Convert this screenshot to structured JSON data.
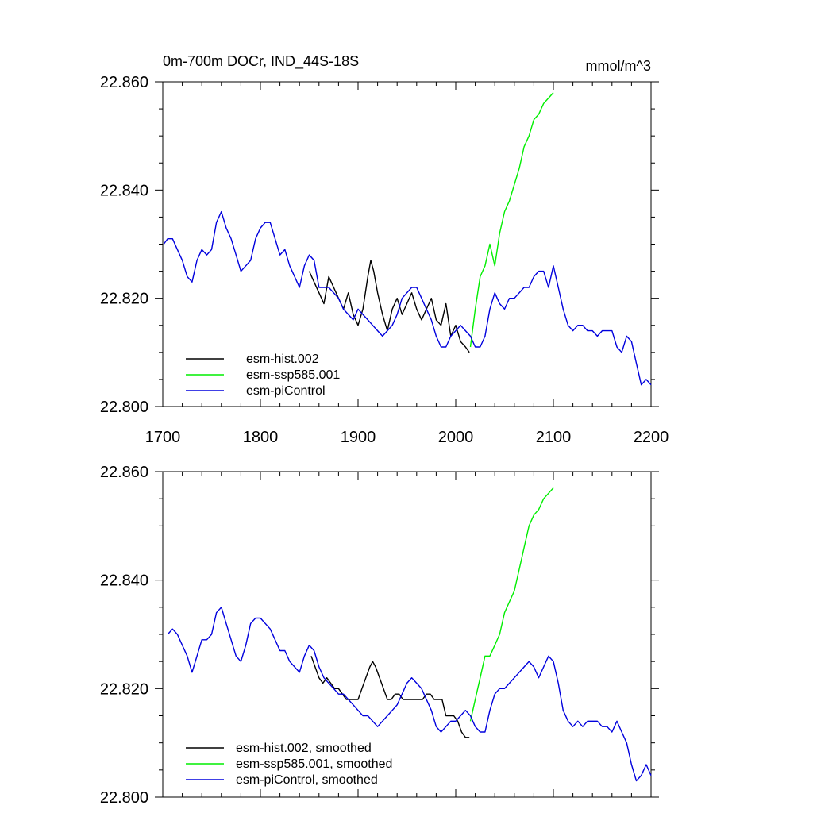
{
  "colors": {
    "hist": "#000000",
    "ssp": "#00ee00",
    "pictrl": "#0000dd",
    "axis": "#000000"
  },
  "chart_data": [
    {
      "type": "line",
      "title": "0m-700m DOCr, IND_44S-18S",
      "units": "mmol/m^3",
      "xlim": [
        1700,
        2200
      ],
      "ylim": [
        22.8,
        22.86
      ],
      "xticks": [
        "1700",
        "1800",
        "1900",
        "2000",
        "2100",
        "2200"
      ],
      "yticks": [
        "22.800",
        "22.820",
        "22.840",
        "22.860"
      ],
      "series": [
        {
          "name": "esm-hist.002",
          "color": "#000000",
          "x": [
            1850,
            1855,
            1860,
            1865,
            1870,
            1875,
            1880,
            1885,
            1890,
            1895,
            1900,
            1905,
            1910,
            1913,
            1916,
            1920,
            1925,
            1930,
            1935,
            1940,
            1945,
            1950,
            1955,
            1960,
            1965,
            1970,
            1975,
            1980,
            1985,
            1990,
            1995,
            2000,
            2005,
            2010,
            2014
          ],
          "y": [
            22.825,
            22.823,
            22.821,
            22.819,
            22.824,
            22.822,
            22.82,
            22.818,
            22.821,
            22.817,
            22.815,
            22.818,
            22.824,
            22.827,
            22.825,
            22.821,
            22.817,
            22.814,
            22.818,
            22.82,
            22.817,
            22.819,
            22.821,
            22.818,
            22.816,
            22.818,
            22.82,
            22.816,
            22.815,
            22.819,
            22.813,
            22.815,
            22.812,
            22.811,
            22.81
          ]
        },
        {
          "name": "esm-ssp585.001",
          "color": "#00ee00",
          "x": [
            2015,
            2020,
            2025,
            2030,
            2035,
            2040,
            2045,
            2050,
            2055,
            2060,
            2065,
            2070,
            2075,
            2080,
            2085,
            2090,
            2095,
            2100
          ],
          "y": [
            22.811,
            22.818,
            22.824,
            22.826,
            22.83,
            22.826,
            22.832,
            22.836,
            22.838,
            22.841,
            22.844,
            22.848,
            22.85,
            22.853,
            22.854,
            22.856,
            22.857,
            22.858
          ]
        },
        {
          "name": "esm-piControl",
          "color": "#0000dd",
          "x": [
            1701,
            1705,
            1710,
            1715,
            1720,
            1725,
            1730,
            1735,
            1740,
            1745,
            1750,
            1755,
            1760,
            1765,
            1770,
            1775,
            1780,
            1785,
            1790,
            1795,
            1800,
            1805,
            1810,
            1815,
            1820,
            1825,
            1830,
            1835,
            1840,
            1845,
            1850,
            1855,
            1860,
            1865,
            1870,
            1875,
            1880,
            1885,
            1890,
            1895,
            1900,
            1905,
            1910,
            1915,
            1920,
            1925,
            1930,
            1935,
            1940,
            1945,
            1950,
            1955,
            1960,
            1965,
            1970,
            1975,
            1980,
            1985,
            1990,
            1995,
            2000,
            2005,
            2010,
            2015,
            2020,
            2025,
            2030,
            2035,
            2040,
            2045,
            2050,
            2055,
            2060,
            2065,
            2070,
            2075,
            2080,
            2085,
            2090,
            2095,
            2100,
            2105,
            2110,
            2115,
            2120,
            2125,
            2130,
            2135,
            2140,
            2145,
            2150,
            2155,
            2160,
            2165,
            2170,
            2175,
            2180,
            2185,
            2190,
            2195,
            2200
          ],
          "y": [
            22.83,
            22.831,
            22.831,
            22.829,
            22.827,
            22.824,
            22.823,
            22.827,
            22.829,
            22.828,
            22.829,
            22.834,
            22.836,
            22.833,
            22.831,
            22.828,
            22.825,
            22.826,
            22.827,
            22.831,
            22.833,
            22.834,
            22.834,
            22.831,
            22.828,
            22.829,
            22.826,
            22.824,
            22.822,
            22.826,
            22.828,
            22.827,
            22.822,
            22.822,
            22.822,
            22.821,
            22.82,
            22.818,
            22.817,
            22.816,
            22.818,
            22.817,
            22.816,
            22.815,
            22.814,
            22.813,
            22.814,
            22.815,
            22.817,
            22.82,
            22.821,
            22.822,
            22.822,
            22.82,
            22.818,
            22.816,
            22.813,
            22.811,
            22.811,
            22.813,
            22.814,
            22.815,
            22.814,
            22.813,
            22.811,
            22.811,
            22.813,
            22.818,
            22.821,
            22.819,
            22.818,
            22.82,
            22.82,
            22.821,
            22.822,
            22.822,
            22.824,
            22.825,
            22.825,
            22.822,
            22.826,
            22.822,
            22.818,
            22.815,
            22.814,
            22.815,
            22.815,
            22.814,
            22.814,
            22.813,
            22.814,
            22.814,
            22.814,
            22.811,
            22.81,
            22.813,
            22.812,
            22.808,
            22.804,
            22.805,
            22.804
          ]
        }
      ]
    },
    {
      "type": "line",
      "xlim": [
        1700,
        2200
      ],
      "ylim": [
        22.8,
        22.86
      ],
      "yticks": [
        "22.800",
        "22.820",
        "22.840",
        "22.860"
      ],
      "series": [
        {
          "name": "esm-hist.002, smoothed",
          "color": "#000000",
          "x": [
            1852,
            1856,
            1860,
            1864,
            1868,
            1872,
            1876,
            1880,
            1884,
            1888,
            1892,
            1896,
            1900,
            1904,
            1908,
            1912,
            1915,
            1918,
            1922,
            1926,
            1930,
            1934,
            1938,
            1942,
            1946,
            1950,
            1954,
            1958,
            1962,
            1966,
            1970,
            1974,
            1978,
            1982,
            1986,
            1990,
            1994,
            1998,
            2002,
            2006,
            2010,
            2014
          ],
          "y": [
            22.826,
            22.824,
            22.822,
            22.821,
            22.822,
            22.821,
            22.82,
            22.82,
            22.819,
            22.818,
            22.818,
            22.818,
            22.818,
            22.82,
            22.822,
            22.824,
            22.825,
            22.824,
            22.822,
            22.82,
            22.818,
            22.818,
            22.819,
            22.819,
            22.818,
            22.818,
            22.818,
            22.818,
            22.818,
            22.818,
            22.819,
            22.819,
            22.818,
            22.818,
            22.818,
            22.815,
            22.815,
            22.815,
            22.814,
            22.812,
            22.811,
            22.811
          ]
        },
        {
          "name": "esm-ssp585.001, smoothed",
          "color": "#00ee00",
          "x": [
            2015,
            2020,
            2025,
            2030,
            2035,
            2040,
            2045,
            2050,
            2055,
            2060,
            2065,
            2070,
            2075,
            2080,
            2085,
            2090,
            2095,
            2100
          ],
          "y": [
            22.814,
            22.818,
            22.822,
            22.826,
            22.826,
            22.828,
            22.83,
            22.834,
            22.836,
            22.838,
            22.842,
            22.846,
            22.85,
            22.852,
            22.853,
            22.855,
            22.856,
            22.857
          ]
        },
        {
          "name": "esm-piControl, smoothed",
          "color": "#0000dd",
          "x": [
            1705,
            1710,
            1715,
            1720,
            1725,
            1730,
            1735,
            1740,
            1745,
            1750,
            1755,
            1760,
            1765,
            1770,
            1775,
            1780,
            1785,
            1790,
            1795,
            1800,
            1805,
            1810,
            1815,
            1820,
            1825,
            1830,
            1835,
            1840,
            1845,
            1850,
            1855,
            1860,
            1865,
            1870,
            1875,
            1880,
            1885,
            1890,
            1895,
            1900,
            1905,
            1910,
            1915,
            1920,
            1925,
            1930,
            1935,
            1940,
            1945,
            1950,
            1955,
            1960,
            1965,
            1970,
            1975,
            1980,
            1985,
            1990,
            1995,
            2000,
            2005,
            2010,
            2015,
            2020,
            2025,
            2030,
            2035,
            2040,
            2045,
            2050,
            2055,
            2060,
            2065,
            2070,
            2075,
            2080,
            2085,
            2090,
            2095,
            2100,
            2105,
            2110,
            2115,
            2120,
            2125,
            2130,
            2135,
            2140,
            2145,
            2150,
            2155,
            2160,
            2165,
            2170,
            2175,
            2180,
            2185,
            2190,
            2195,
            2200
          ],
          "y": [
            22.83,
            22.831,
            22.83,
            22.828,
            22.826,
            22.823,
            22.826,
            22.829,
            22.829,
            22.83,
            22.834,
            22.835,
            22.832,
            22.829,
            22.826,
            22.825,
            22.828,
            22.832,
            22.833,
            22.833,
            22.832,
            22.831,
            22.829,
            22.827,
            22.827,
            22.825,
            22.824,
            22.823,
            22.826,
            22.828,
            22.827,
            22.824,
            22.822,
            22.821,
            22.82,
            22.819,
            22.819,
            22.818,
            22.817,
            22.816,
            22.815,
            22.815,
            22.814,
            22.813,
            22.814,
            22.815,
            22.816,
            22.817,
            22.819,
            22.821,
            22.822,
            22.821,
            22.82,
            22.818,
            22.816,
            22.813,
            22.812,
            22.813,
            22.814,
            22.814,
            22.815,
            22.816,
            22.815,
            22.813,
            22.812,
            22.812,
            22.816,
            22.819,
            22.82,
            22.82,
            22.821,
            22.822,
            22.823,
            22.824,
            22.825,
            22.824,
            22.822,
            22.824,
            22.826,
            22.825,
            22.821,
            22.816,
            22.814,
            22.813,
            22.814,
            22.813,
            22.814,
            22.814,
            22.814,
            22.813,
            22.813,
            22.812,
            22.814,
            22.812,
            22.81,
            22.806,
            22.803,
            22.804,
            22.806,
            22.804
          ]
        }
      ]
    }
  ]
}
